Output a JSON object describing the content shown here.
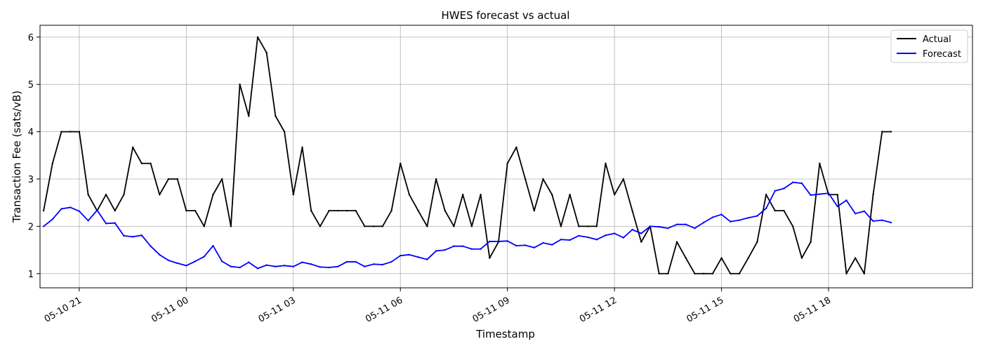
{
  "chart_data": {
    "type": "line",
    "title": "HWES forecast vs actual",
    "xlabel": "Timestamp",
    "ylabel": "Transaction Fee (sats/vB)",
    "x_axis": {
      "type": "datetime",
      "range": [
        "2025-05-10 19:54",
        "2025-05-11 22:02"
      ],
      "tick_values": [
        "2025-05-10 21:00",
        "2025-05-11 00:00",
        "2025-05-11 03:00",
        "2025-05-11 06:00",
        "2025-05-11 09:00",
        "2025-05-11 12:00",
        "2025-05-11 15:00",
        "2025-05-11 18:00"
      ],
      "tick_labels": [
        "05-10 21",
        "05-11 00",
        "05-11 03",
        "05-11 06",
        "05-11 09",
        "05-11 12",
        "05-11 15",
        "05-11 18"
      ]
    },
    "y_axis": {
      "range": [
        0.7,
        6.25
      ],
      "ticks": [
        1,
        2,
        3,
        4,
        5,
        6
      ],
      "tick_labels": [
        "1",
        "2",
        "3",
        "4",
        "5",
        "6"
      ]
    },
    "grid": true,
    "legend_position": "top-right",
    "x": [
      "2025-05-10 20:00",
      "2025-05-10 20:15",
      "2025-05-10 20:30",
      "2025-05-10 20:45",
      "2025-05-10 21:00",
      "2025-05-10 21:15",
      "2025-05-10 21:30",
      "2025-05-10 21:45",
      "2025-05-10 22:00",
      "2025-05-10 22:15",
      "2025-05-10 22:30",
      "2025-05-10 22:45",
      "2025-05-10 23:00",
      "2025-05-10 23:15",
      "2025-05-10 23:30",
      "2025-05-10 23:45",
      "2025-05-11 00:00",
      "2025-05-11 00:15",
      "2025-05-11 00:30",
      "2025-05-11 00:45",
      "2025-05-11 01:00",
      "2025-05-11 01:15",
      "2025-05-11 01:30",
      "2025-05-11 01:45",
      "2025-05-11 02:00",
      "2025-05-11 02:15",
      "2025-05-11 02:30",
      "2025-05-11 02:45",
      "2025-05-11 03:00",
      "2025-05-11 03:15",
      "2025-05-11 03:30",
      "2025-05-11 03:45",
      "2025-05-11 04:00",
      "2025-05-11 04:15",
      "2025-05-11 04:30",
      "2025-05-11 04:45",
      "2025-05-11 05:00",
      "2025-05-11 05:15",
      "2025-05-11 05:30",
      "2025-05-11 05:45",
      "2025-05-11 06:00",
      "2025-05-11 06:15",
      "2025-05-11 06:30",
      "2025-05-11 06:45",
      "2025-05-11 07:00",
      "2025-05-11 07:15",
      "2025-05-11 07:30",
      "2025-05-11 07:45",
      "2025-05-11 08:00",
      "2025-05-11 08:15",
      "2025-05-11 08:30",
      "2025-05-11 08:45",
      "2025-05-11 09:00",
      "2025-05-11 09:15",
      "2025-05-11 09:30",
      "2025-05-11 09:45",
      "2025-05-11 10:00",
      "2025-05-11 10:15",
      "2025-05-11 10:30",
      "2025-05-11 10:45",
      "2025-05-11 11:00",
      "2025-05-11 11:15",
      "2025-05-11 11:30",
      "2025-05-11 11:45",
      "2025-05-11 12:00",
      "2025-05-11 12:15",
      "2025-05-11 12:30",
      "2025-05-11 12:45",
      "2025-05-11 13:00",
      "2025-05-11 13:15",
      "2025-05-11 13:30",
      "2025-05-11 13:45",
      "2025-05-11 14:00",
      "2025-05-11 14:15",
      "2025-05-11 14:30",
      "2025-05-11 14:45",
      "2025-05-11 15:00",
      "2025-05-11 15:15",
      "2025-05-11 15:30",
      "2025-05-11 15:45",
      "2025-05-11 16:00",
      "2025-05-11 16:15",
      "2025-05-11 16:30",
      "2025-05-11 16:45",
      "2025-05-11 17:00",
      "2025-05-11 17:15",
      "2025-05-11 17:30",
      "2025-05-11 17:45",
      "2025-05-11 18:00",
      "2025-05-11 18:15",
      "2025-05-11 18:30",
      "2025-05-11 18:45",
      "2025-05-11 19:00",
      "2025-05-11 19:15",
      "2025-05-11 19:30",
      "2025-05-11 19:45"
    ],
    "series": [
      {
        "name": "Actual",
        "color": "#000000",
        "values": [
          2.33,
          3.33,
          4.0,
          4.0,
          4.0,
          2.67,
          2.33,
          2.67,
          2.33,
          2.67,
          3.67,
          3.33,
          3.33,
          2.67,
          3.0,
          3.0,
          2.33,
          2.33,
          2.0,
          2.67,
          3.0,
          2.0,
          5.0,
          4.33,
          6.0,
          5.67,
          4.33,
          4.0,
          2.67,
          3.67,
          2.33,
          2.0,
          2.33,
          2.33,
          2.33,
          2.33,
          2.0,
          2.0,
          2.0,
          2.33,
          3.33,
          2.67,
          2.33,
          2.0,
          3.0,
          2.33,
          2.0,
          2.67,
          2.0,
          2.67,
          1.33,
          1.67,
          3.33,
          3.67,
          3.0,
          2.33,
          3.0,
          2.67,
          2.0,
          2.67,
          2.0,
          2.0,
          2.0,
          3.33,
          2.67,
          3.0,
          2.33,
          1.67,
          2.0,
          1.0,
          1.0,
          1.67,
          1.33,
          1.0,
          1.0,
          1.0,
          1.33,
          1.0,
          1.0,
          1.33,
          1.67,
          2.67,
          2.33,
          2.33,
          2.0,
          1.33,
          1.67,
          3.33,
          2.67,
          2.67,
          1.0,
          1.33,
          1.0,
          2.67,
          4.0,
          4.0
        ]
      },
      {
        "name": "Forecast",
        "color": "#0000ff",
        "values": [
          2.0,
          2.15,
          2.37,
          2.4,
          2.32,
          2.12,
          2.34,
          2.06,
          2.07,
          1.8,
          1.78,
          1.81,
          1.58,
          1.4,
          1.28,
          1.22,
          1.17,
          1.26,
          1.36,
          1.59,
          1.26,
          1.15,
          1.13,
          1.24,
          1.11,
          1.18,
          1.15,
          1.17,
          1.15,
          1.24,
          1.2,
          1.14,
          1.13,
          1.15,
          1.25,
          1.25,
          1.15,
          1.2,
          1.19,
          1.25,
          1.38,
          1.4,
          1.35,
          1.3,
          1.48,
          1.5,
          1.58,
          1.58,
          1.52,
          1.52,
          1.68,
          1.68,
          1.69,
          1.59,
          1.6,
          1.55,
          1.65,
          1.61,
          1.72,
          1.71,
          1.8,
          1.77,
          1.72,
          1.81,
          1.85,
          1.76,
          1.93,
          1.85,
          2.0,
          1.99,
          1.96,
          2.04,
          2.04,
          1.96,
          2.08,
          2.19,
          2.25,
          2.1,
          2.13,
          2.18,
          2.22,
          2.38,
          2.75,
          2.8,
          2.93,
          2.91,
          2.66,
          2.68,
          2.7,
          2.42,
          2.55,
          2.27,
          2.32,
          2.11,
          2.13,
          2.08
        ]
      }
    ]
  }
}
